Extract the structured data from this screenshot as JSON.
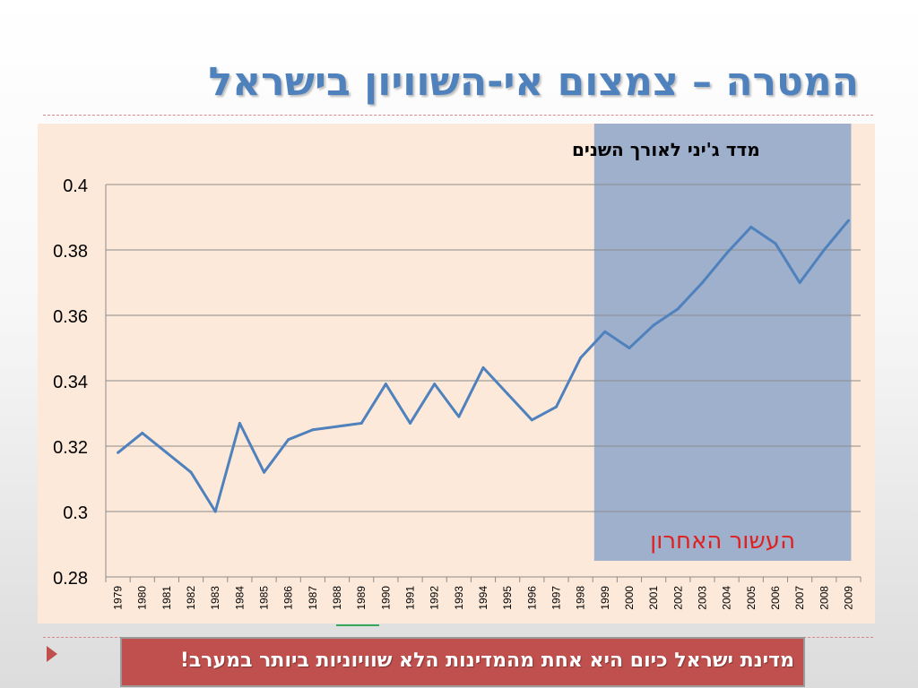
{
  "slide": {
    "title": "המטרה – צמצום אי-השוויון בישראל",
    "bottom_text": "מדינת ישראל כיום היא אחת מהמדינות הלא שוויוניות ביותר במערב!"
  },
  "colors": {
    "title": "#4f81bd",
    "line": "#4f81bd",
    "highlight": "#9eb0cc",
    "panel": "#fce9d9",
    "annotation": "#e02020",
    "bottom_box": "#c0504d"
  },
  "chart_data": {
    "type": "line",
    "title": "מדד ג'יני לאורך השנים",
    "xlabel": "",
    "ylabel": "",
    "categories": [
      "1979",
      "1980",
      "1981",
      "1982",
      "1983",
      "1984",
      "1985",
      "1986",
      "1987",
      "1988",
      "1989",
      "1990",
      "1991",
      "1992",
      "1993",
      "1994",
      "1995",
      "1996",
      "1997",
      "1998",
      "1999",
      "2000",
      "2001",
      "2002",
      "2003",
      "2004",
      "2005",
      "2006",
      "2007",
      "2008",
      "2009"
    ],
    "series": [
      {
        "values": [
          0.318,
          0.324,
          0.318,
          0.312,
          0.3,
          0.327,
          0.312,
          0.322,
          0.325,
          0.326,
          0.327,
          0.339,
          0.327,
          0.339,
          0.329,
          0.344,
          0.336,
          0.328,
          0.332,
          0.347,
          0.355,
          0.35,
          0.357,
          0.362,
          0.37,
          0.379,
          0.387,
          0.382,
          0.37,
          0.38,
          0.389
        ]
      }
    ],
    "ylim": [
      0.28,
      0.4
    ],
    "yticks": [
      "0.28",
      "0.3",
      "0.32",
      "0.34",
      "0.36",
      "0.38",
      "0.4"
    ],
    "grid": true,
    "legend": "none",
    "highlight": {
      "from": "1999",
      "to": "2009",
      "label": "העשור האחרון"
    }
  }
}
